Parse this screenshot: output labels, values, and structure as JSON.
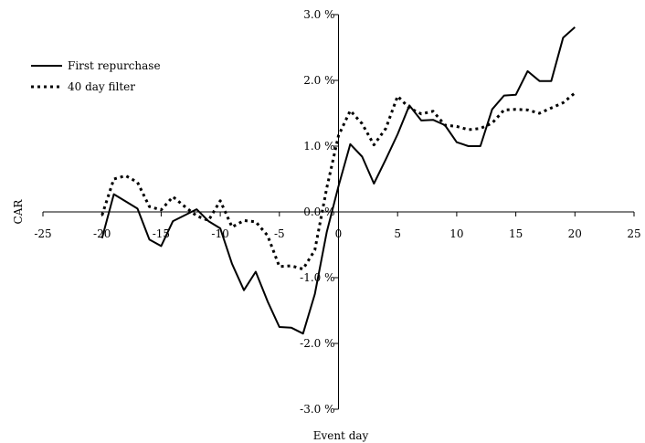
{
  "chart_data": {
    "type": "line",
    "title": "",
    "xlabel": "Event day",
    "ylabel": "CAR",
    "xlim": [
      -25,
      25
    ],
    "ylim": [
      -3.0,
      3.0
    ],
    "x_ticks": [
      -25,
      -20,
      -15,
      -10,
      -5,
      0,
      5,
      10,
      15,
      20,
      25
    ],
    "x_tick_labels": [
      "-25",
      "-20",
      "-15",
      "-10",
      "-5",
      "0",
      "5",
      "10",
      "15",
      "20",
      "25"
    ],
    "y_ticks": [
      3.0,
      2.0,
      1.0,
      0.0,
      -1.0,
      -2.0,
      -3.0
    ],
    "y_tick_labels": [
      "3.0 %",
      "2.0 %",
      "1.0 %",
      "0.0 %",
      "-1.0 %",
      "-2.0 %",
      "-3.0 %"
    ],
    "grid": false,
    "legend_position": "top-left",
    "x": [
      -20,
      -19,
      -18,
      -17,
      -16,
      -15,
      -14,
      -13,
      -12,
      -11,
      -10,
      -9,
      -8,
      -7,
      -6,
      -5,
      -4,
      -3,
      -2,
      -1,
      0,
      1,
      2,
      3,
      4,
      5,
      6,
      7,
      8,
      9,
      10,
      11,
      12,
      13,
      14,
      15,
      16,
      17,
      18,
      19,
      20
    ],
    "series": [
      {
        "name": "First repurchase",
        "style": "solid",
        "values": [
          -0.4,
          0.27,
          0.16,
          0.05,
          -0.42,
          -0.52,
          -0.14,
          -0.05,
          0.04,
          -0.14,
          -0.25,
          -0.79,
          -1.19,
          -0.91,
          -1.36,
          -1.75,
          -1.76,
          -1.85,
          -1.25,
          -0.31,
          0.39,
          1.03,
          0.84,
          0.43,
          0.8,
          1.18,
          1.62,
          1.39,
          1.4,
          1.32,
          1.06,
          1.0,
          1.0,
          1.56,
          1.77,
          1.78,
          2.14,
          1.99,
          1.99,
          2.65,
          2.81
        ]
      },
      {
        "name": "40 day filter",
        "style": "dotted",
        "values": [
          -0.05,
          0.5,
          0.55,
          0.45,
          0.08,
          0.03,
          0.23,
          0.08,
          -0.06,
          -0.13,
          0.17,
          -0.23,
          -0.13,
          -0.15,
          -0.36,
          -0.83,
          -0.82,
          -0.87,
          -0.58,
          0.36,
          1.16,
          1.54,
          1.34,
          1.02,
          1.27,
          1.76,
          1.58,
          1.49,
          1.53,
          1.32,
          1.3,
          1.25,
          1.27,
          1.35,
          1.55,
          1.56,
          1.55,
          1.5,
          1.58,
          1.66,
          1.81
        ]
      }
    ]
  }
}
